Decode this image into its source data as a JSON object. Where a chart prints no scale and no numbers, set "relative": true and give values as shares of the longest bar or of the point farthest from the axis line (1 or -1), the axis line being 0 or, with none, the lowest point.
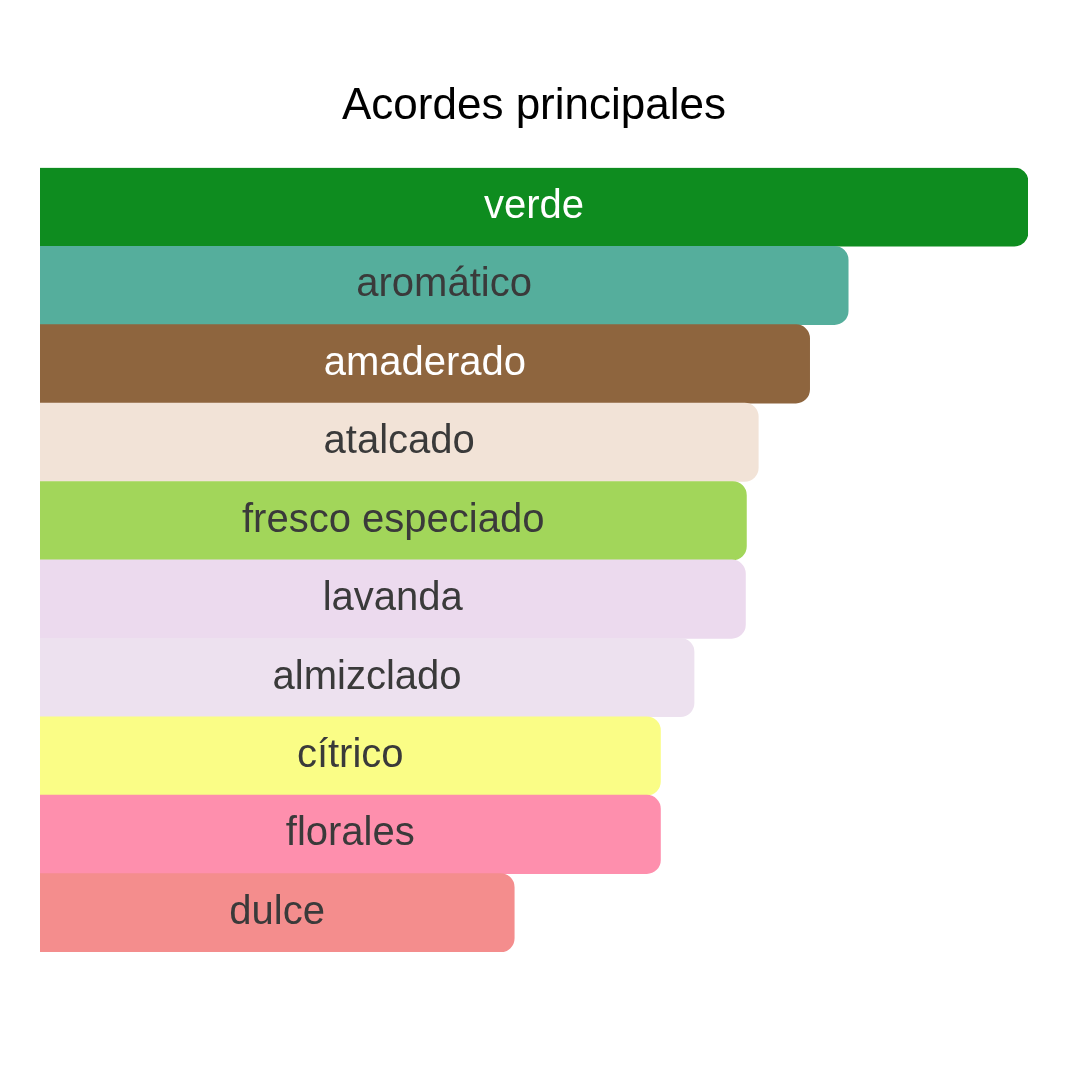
{
  "chart_data": {
    "type": "bar",
    "orientation": "horizontal",
    "relative": true,
    "title": "Acordes principales",
    "categories": [
      "verde",
      "aromático",
      "amaderado",
      "atalcado",
      "fresco especiado",
      "lavanda",
      "almizclado",
      "cítrico",
      "florales",
      "dulce"
    ],
    "values": [
      1,
      0.818,
      0.779,
      0.727,
      0.715,
      0.714,
      0.662,
      0.628,
      0.628,
      0.48
    ],
    "colors": [
      "#0e8c1f",
      "#55ae9c",
      "#8e653e",
      "#f2e3d7",
      "#a2d65a",
      "#ecdaee",
      "#ede1ef",
      "#fafd86",
      "#fe8fad",
      "#f48d8d"
    ],
    "legend": false,
    "tick_labels": false
  }
}
